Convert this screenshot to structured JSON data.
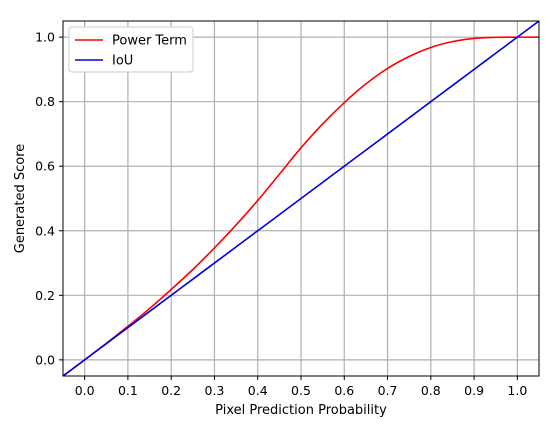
{
  "colors": {
    "grid": "#b0b0b0",
    "axis": "#000000",
    "legend_border": "#cccccc",
    "background": "#ffffff"
  },
  "chart_data": {
    "type": "line",
    "title": "",
    "xlabel": "Pixel Prediction Probability",
    "ylabel": "Generated Score",
    "xlim": [
      -0.05,
      1.05
    ],
    "ylim": [
      -0.05,
      1.05
    ],
    "xticks": [
      0.0,
      0.1,
      0.2,
      0.3,
      0.4,
      0.5,
      0.6,
      0.7,
      0.8,
      0.9,
      1.0
    ],
    "xtick_labels": [
      "0.0",
      "0.1",
      "0.2",
      "0.3",
      "0.4",
      "0.5",
      "0.6",
      "0.7",
      "0.8",
      "0.9",
      "1.0"
    ],
    "yticks": [
      0.0,
      0.2,
      0.4,
      0.6,
      0.8,
      1.0
    ],
    "ytick_labels": [
      "0.0",
      "0.2",
      "0.4",
      "0.6",
      "0.8",
      "1.0"
    ],
    "grid": true,
    "legend_position": "top-left",
    "x": [
      -0.05,
      0.0,
      0.05,
      0.1,
      0.15,
      0.2,
      0.25,
      0.3,
      0.35,
      0.4,
      0.45,
      0.5,
      0.55,
      0.6,
      0.65,
      0.7,
      0.75,
      0.8,
      0.85,
      0.9,
      0.95,
      1.0,
      1.05
    ],
    "series": [
      {
        "name": "Power Term",
        "color": "#ff0000",
        "values": [
          -0.05,
          0.0,
          0.051,
          0.104,
          0.159,
          0.218,
          0.28,
          0.347,
          0.418,
          0.494,
          0.575,
          0.657,
          0.731,
          0.797,
          0.855,
          0.903,
          0.94,
          0.968,
          0.986,
          0.996,
          0.9995,
          1.0,
          1.0
        ]
      },
      {
        "name": "IoU",
        "color": "#0000dd",
        "values": [
          -0.05,
          0.0,
          0.05,
          0.1,
          0.15,
          0.2,
          0.25,
          0.3,
          0.35,
          0.4,
          0.45,
          0.5,
          0.55,
          0.6,
          0.65,
          0.7,
          0.75,
          0.8,
          0.85,
          0.9,
          0.95,
          1.0,
          1.05
        ]
      }
    ]
  }
}
